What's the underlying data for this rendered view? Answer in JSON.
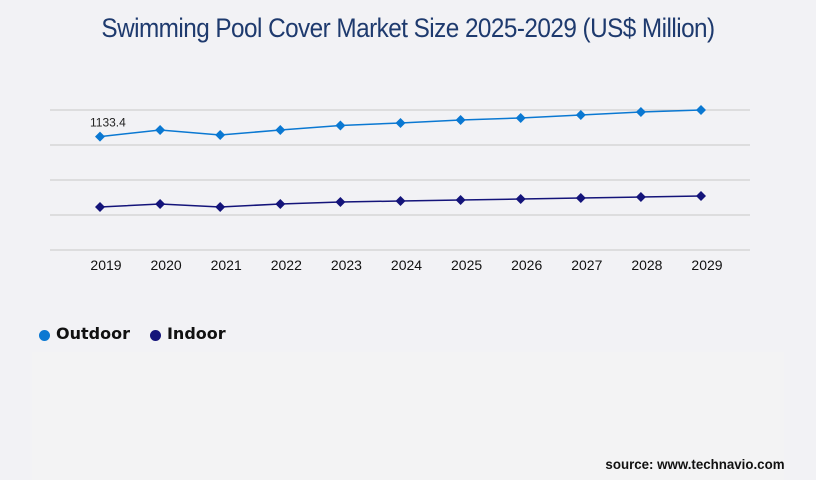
{
  "chart_data": {
    "type": "line",
    "title": "Swimming Pool Cover Market Size 2025-2029 (US$ Million)",
    "xlabel": "",
    "ylabel": "",
    "ylim": [
      0,
      1400
    ],
    "grid": true,
    "legend_position": "bottom-left",
    "categories": [
      "2019",
      "2020",
      "2021",
      "2022",
      "2023",
      "2024",
      "2025",
      "2026",
      "2027",
      "2028",
      "2029"
    ],
    "series": [
      {
        "name": "Outdoor",
        "color": "#0a78d2",
        "values": [
          1133.4,
          1200,
          1150,
          1200,
          1245,
          1270,
          1300,
          1320,
          1350,
          1380,
          1400
        ]
      },
      {
        "name": "Indoor",
        "color": "#14147a",
        "values": [
          430,
          460,
          430,
          460,
          480,
          490,
          500,
          510,
          520,
          530,
          540
        ]
      }
    ],
    "annotations": [
      {
        "series": "Outdoor",
        "category": "2019",
        "text": "1133.4"
      }
    ],
    "source": "source: www.technavio.com"
  }
}
